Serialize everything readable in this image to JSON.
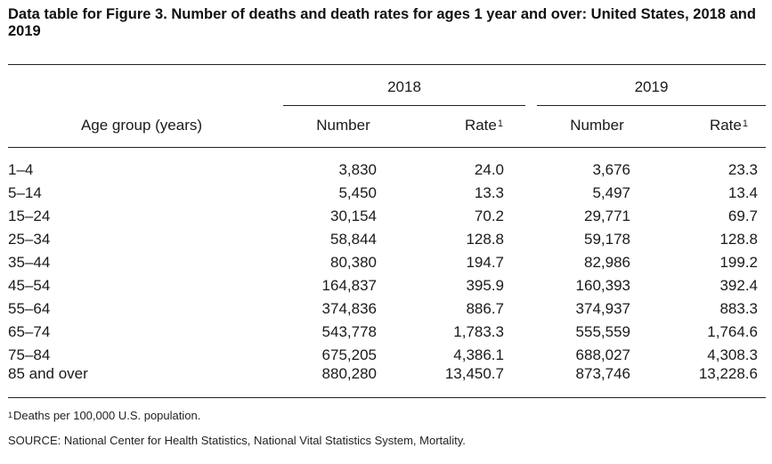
{
  "title": "Data table for Figure 3. Number of deaths and death rates for ages 1 year and over: United States, 2018 and 2019",
  "headers": {
    "year_2018": "2018",
    "year_2019": "2019",
    "age_group": "Age group (years)",
    "number_2018": "Number",
    "rate_2018": "Rate",
    "number_2019": "Number",
    "rate_2019": "Rate",
    "rate_footnote_marker": "1"
  },
  "rows": [
    {
      "age": "1–4",
      "n2018": "3,830",
      "r2018": "24.0",
      "n2019": "3,676",
      "r2019": "23.3"
    },
    {
      "age": "5–14",
      "n2018": "5,450",
      "r2018": "13.3",
      "n2019": "5,497",
      "r2019": "13.4"
    },
    {
      "age": "15–24",
      "n2018": "30,154",
      "r2018": "70.2",
      "n2019": "29,771",
      "r2019": "69.7"
    },
    {
      "age": "25–34",
      "n2018": "58,844",
      "r2018": "128.8",
      "n2019": "59,178",
      "r2019": "128.8"
    },
    {
      "age": "35–44",
      "n2018": "80,380",
      "r2018": "194.7",
      "n2019": "82,986",
      "r2019": "199.2"
    },
    {
      "age": "45–54",
      "n2018": "164,837",
      "r2018": "395.9",
      "n2019": "160,393",
      "r2019": "392.4"
    },
    {
      "age": "55–64",
      "n2018": "374,836",
      "r2018": "886.7",
      "n2019": "374,937",
      "r2019": "883.3"
    },
    {
      "age": "65–74",
      "n2018": "543,778",
      "r2018": "1,783.3",
      "n2019": "555,559",
      "r2019": "1,764.6"
    },
    {
      "age": "75–84",
      "n2018": "675,205",
      "r2018": "4,386.1",
      "n2019": "688,027",
      "r2019": "4,308.3"
    },
    {
      "age": "85 and over",
      "n2018": "880,280",
      "r2018": "13,450.7",
      "n2019": "873,746",
      "r2019": "13,228.6"
    }
  ],
  "footnotes": {
    "marker": "1",
    "rate_note": "Deaths per 100,000 U.S. population.",
    "source": "SOURCE: National Center for Health Statistics, National Vital Statistics System, Mortality."
  }
}
